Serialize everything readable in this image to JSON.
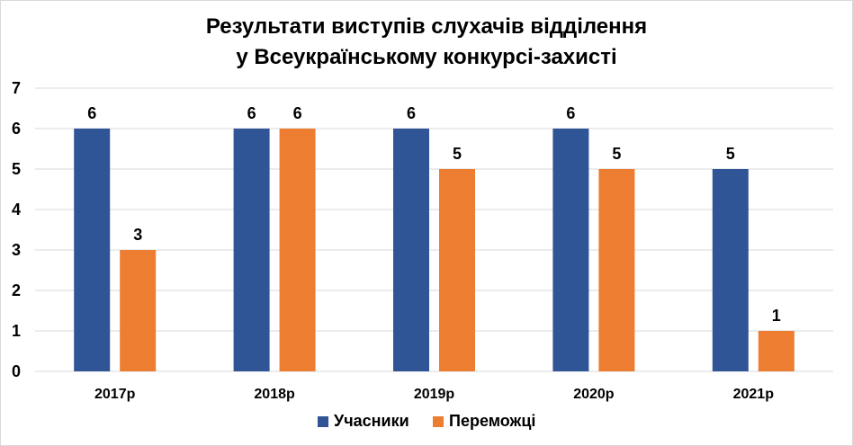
{
  "chart_data": {
    "type": "bar",
    "title_lines": [
      "Результати виступів слухачів відділення",
      "у Всеукраїнському конкурсі-захисті"
    ],
    "categories": [
      "2017р",
      "2018р",
      "2019р",
      "2020р",
      "2021р"
    ],
    "series": [
      {
        "name": "Учасники",
        "values": [
          6,
          6,
          6,
          6,
          5
        ],
        "color": "#2f5597"
      },
      {
        "name": "Переможці",
        "values": [
          3,
          6,
          5,
          5,
          1
        ],
        "color": "#ed7d31"
      }
    ],
    "ylim": [
      0,
      7
    ],
    "yticks": [
      0,
      1,
      2,
      3,
      4,
      5,
      6,
      7
    ],
    "grid": true,
    "legend_position": "bottom",
    "data_labels": true
  }
}
